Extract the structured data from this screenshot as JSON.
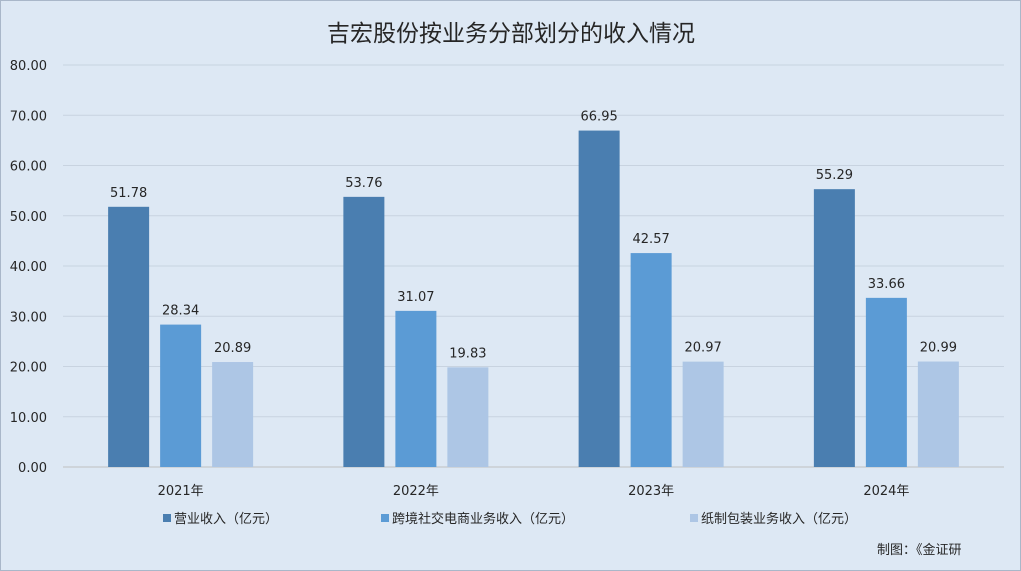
{
  "chart_data": {
    "type": "bar",
    "title": "吉宏股份按业务分部划分的收入情况",
    "categories": [
      "2021年",
      "2022年",
      "2023年",
      "2024年"
    ],
    "series": [
      {
        "name": "营业收入（亿元）",
        "values": [
          51.78,
          53.76,
          66.95,
          55.29
        ],
        "labels": [
          "51.78",
          "53.76",
          "66.95",
          "55.29"
        ],
        "color": "#4a7eb0"
      },
      {
        "name": "跨境社交电商业务收入（亿元）",
        "values": [
          28.34,
          31.07,
          42.57,
          33.66
        ],
        "labels": [
          "28.34",
          "31.07",
          "42.57",
          "33.66"
        ],
        "color": "#5b9bd5"
      },
      {
        "name": "纸制包装业务收入（亿元）",
        "values": [
          20.89,
          19.83,
          20.97,
          20.99
        ],
        "labels": [
          "20.89",
          "19.83",
          "20.97",
          "20.99"
        ],
        "color": "#adc6e5"
      }
    ],
    "ylim": [
      0,
      80
    ],
    "yticks": [
      "0.00",
      "10.00",
      "20.00",
      "30.00",
      "40.00",
      "50.00",
      "60.00",
      "70.00",
      "80.00"
    ],
    "grid": true,
    "legend": "bottom",
    "xlabel": "",
    "ylabel": ""
  },
  "credit": "制图：《金证研"
}
